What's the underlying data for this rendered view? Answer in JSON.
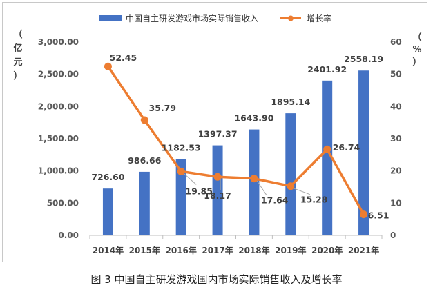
{
  "caption": "图 3 中国自主研发游戏国内市场实际销售收入及增长率",
  "chart_data": {
    "type": "bar+line",
    "categories": [
      "2014年",
      "2015年",
      "2016年",
      "2017年",
      "2018年",
      "2019年",
      "2020年",
      "2021年"
    ],
    "series": [
      {
        "name": "中国自主研发游戏市场实际销售收入",
        "axis": "left",
        "kind": "bar",
        "color": "#4472C4",
        "values": [
          726.6,
          986.66,
          1182.53,
          1397.37,
          1643.9,
          1895.14,
          2401.92,
          2558.19
        ],
        "labels": [
          "726.60",
          "986.66",
          "1182.53",
          "1397.37",
          "1643.90",
          "1895.14",
          "2401.92",
          "2558.19"
        ]
      },
      {
        "name": "增长率",
        "axis": "right",
        "kind": "line",
        "color": "#ED7D31",
        "values": [
          52.45,
          35.79,
          19.85,
          18.17,
          17.64,
          15.28,
          26.74,
          6.51
        ],
        "labels": [
          "52.45",
          "35.79",
          "19.85",
          "18.17",
          "17.64",
          "15.28",
          "26.74",
          "6.51"
        ]
      }
    ],
    "y_left": {
      "label": [
        "（",
        "亿",
        "元",
        "）"
      ],
      "ylim": [
        0,
        3000
      ],
      "ticks": [
        0,
        500,
        1000,
        1500,
        2000,
        2500,
        3000
      ],
      "tick_labels": [
        "0.00",
        "500.00",
        "1,000.00",
        "1,500.00",
        "2,000.00",
        "2,500.00",
        "3,000.00"
      ]
    },
    "y_right": {
      "label": [
        "（",
        "%",
        "）"
      ],
      "ylim": [
        0,
        60
      ],
      "ticks": [
        0,
        10,
        20,
        30,
        40,
        50,
        60
      ],
      "tick_labels": [
        "0",
        "10",
        "20",
        "30",
        "40",
        "50",
        "60"
      ]
    },
    "legend_position": "top-center",
    "grid": false
  }
}
